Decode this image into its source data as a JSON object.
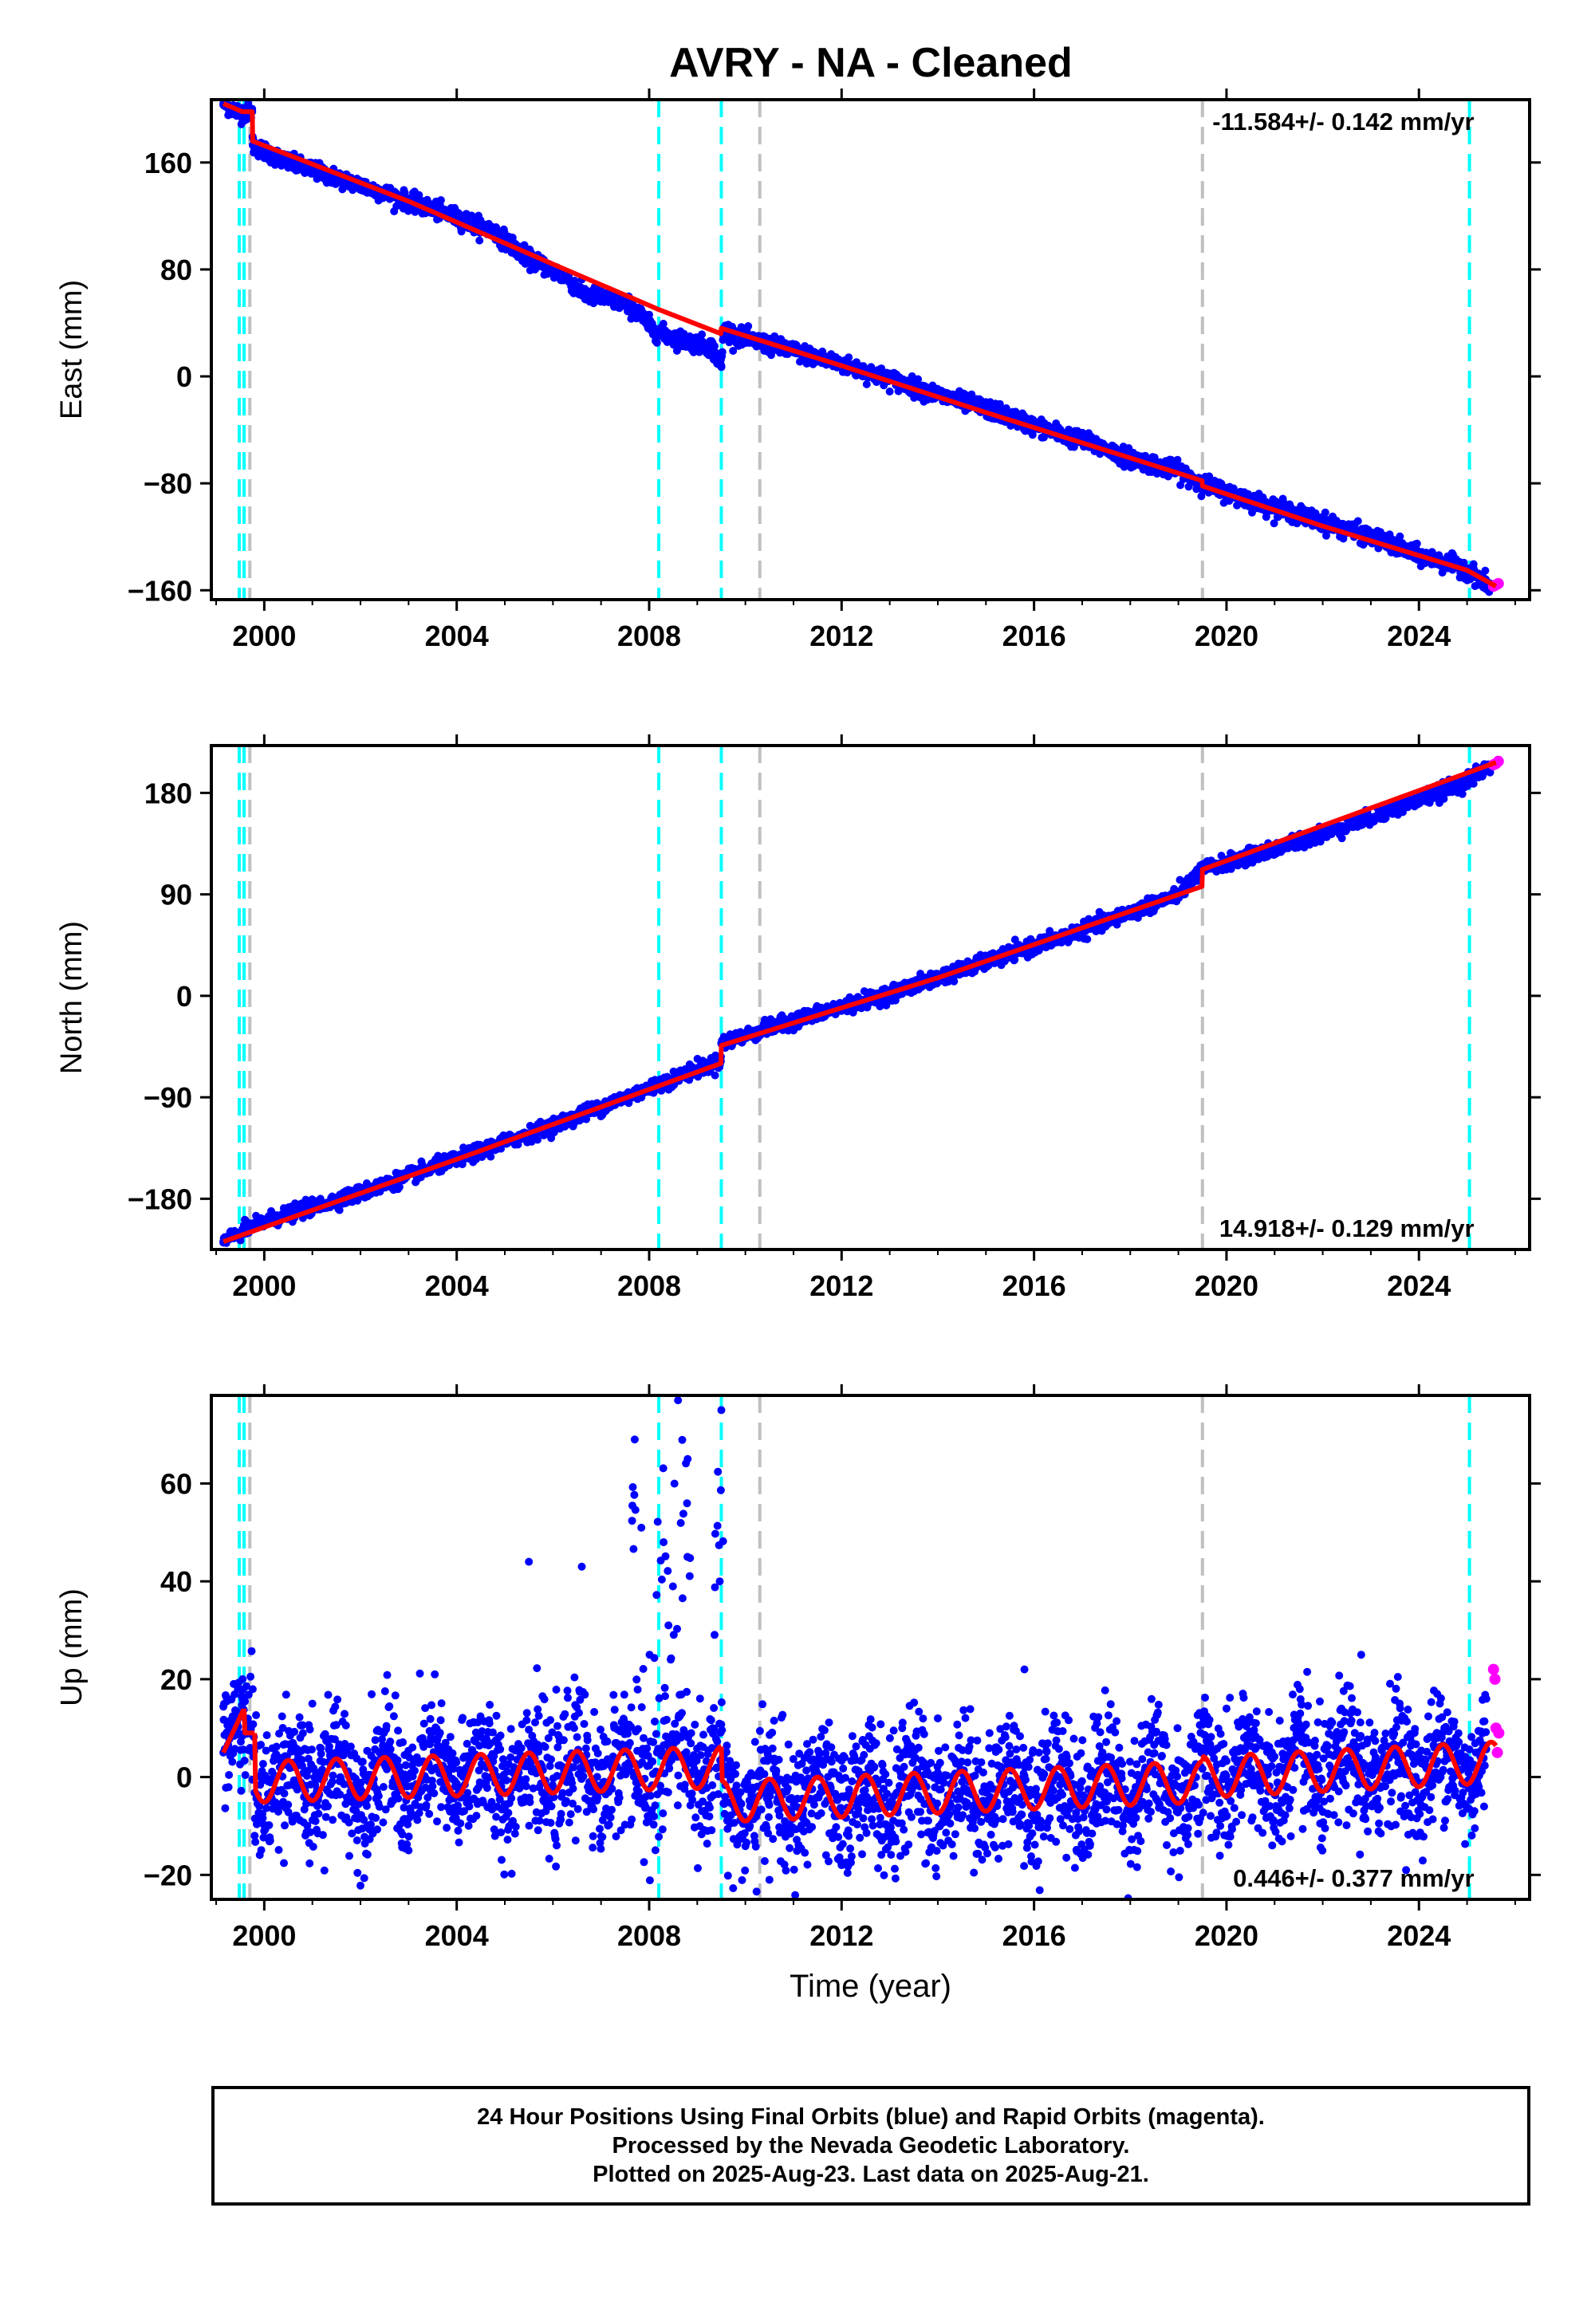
{
  "title": "AVRY  - NA - Cleaned",
  "colors": {
    "final": "#0000ff",
    "rapid": "#ff00ff",
    "model": "#ff0000",
    "equipment_change": "#00ffff",
    "earthquake": "#c0c0c0"
  },
  "chart_data": [
    {
      "type": "scatter",
      "ylabel": "East (mm)",
      "xlabel": "",
      "rate": "-11.584+/- 0.142 mm/yr",
      "rate_position": "top-right",
      "xlim": [
        1998.9,
        2026.3
      ],
      "ylim": [
        -167,
        207
      ],
      "xticks": [
        2000,
        2004,
        2008,
        2012,
        2016,
        2020,
        2024
      ],
      "xtick_labels": [
        "2000",
        "2004",
        "2008",
        "2012",
        "2016",
        "2020",
        "2024"
      ],
      "yticks": [
        -160,
        -80,
        0,
        80,
        160
      ],
      "ytick_labels": [
        "−160",
        "−80",
        "0",
        "80",
        "160"
      ],
      "series": [
        {
          "name": "Final Orbits",
          "color": "#0000ff",
          "x": [
            1999.15,
            1999.5,
            1999.75,
            1999.76,
            2000.5,
            2002,
            2004,
            2004.8,
            2005.5,
            2006.3,
            2006.6,
            2007.5,
            2007.8,
            2008.1,
            2008.6,
            2009.3,
            2009.5,
            2009.55,
            2010,
            2011,
            2012,
            2013,
            2014,
            2015,
            2016,
            2017,
            2018,
            2019,
            2019.5,
            2020,
            2021,
            2022,
            2023,
            2024,
            2025,
            2025.5
          ],
          "y": [
            204,
            197,
            198,
            173,
            160,
            143,
            119,
            108,
            88,
            74,
            62,
            55,
            47,
            34,
            28,
            22,
            8,
            35,
            28,
            19,
            9,
            -2,
            -14,
            -24,
            -37,
            -48,
            -61,
            -71,
            -80,
            -87,
            -98,
            -109,
            -120,
            -134,
            -144,
            -158
          ]
        },
        {
          "name": "Rapid Orbits",
          "color": "#ff00ff",
          "x": [
            2025.55,
            2025.6,
            2025.65
          ],
          "y": [
            -157,
            -156,
            -155
          ]
        }
      ],
      "model": {
        "color": "#ff0000",
        "x": [
          1999.15,
          1999.55,
          1999.75,
          1999.76,
          2003,
          2006,
          2008.2,
          2009.49,
          2009.5,
          2012,
          2015,
          2018,
          2019.49,
          2019.5,
          2022,
          2025,
          2025.6
        ],
        "y": [
          204,
          198,
          198,
          176,
          131,
          84,
          50,
          32,
          36,
          8,
          -27,
          -61,
          -78,
          -82,
          -112,
          -145,
          -157
        ]
      },
      "equipment_changes": [
        1999.48,
        1999.58,
        2008.2,
        2009.5,
        2025.05
      ],
      "earthquakes": [
        1999.7,
        2010.3,
        2019.5
      ]
    },
    {
      "type": "scatter",
      "ylabel": "North (mm)",
      "xlabel": "",
      "rate": "14.918+/- 0.129 mm/yr",
      "rate_position": "bottom-right",
      "xlim": [
        1998.9,
        2026.3
      ],
      "ylim": [
        -225,
        222
      ],
      "xticks": [
        2000,
        2004,
        2008,
        2012,
        2016,
        2020,
        2024
      ],
      "xtick_labels": [
        "2000",
        "2004",
        "2008",
        "2012",
        "2016",
        "2020",
        "2024"
      ],
      "yticks": [
        -180,
        -90,
        0,
        90,
        180
      ],
      "ytick_labels": [
        "−180",
        "−90",
        "0",
        "90",
        "180"
      ],
      "series": [
        {
          "name": "Final Orbits",
          "color": "#0000ff",
          "x": [
            1999.15,
            1999.6,
            2000,
            2002,
            2004,
            2006,
            2008,
            2009,
            2009.49,
            2009.5,
            2011,
            2013,
            2015,
            2017,
            2019,
            2019.5,
            2021,
            2023,
            2025,
            2025.5
          ],
          "y": [
            -218,
            -208,
            -200,
            -175,
            -145,
            -115,
            -82,
            -65,
            -58,
            -42,
            -22,
            2,
            30,
            58,
            90,
            112,
            130,
            158,
            190,
            205
          ]
        },
        {
          "name": "Rapid Orbits",
          "color": "#ff00ff",
          "x": [
            2025.55,
            2025.6,
            2025.65
          ],
          "y": [
            205,
            206,
            208
          ]
        }
      ],
      "model": {
        "color": "#ff0000",
        "x": [
          1999.15,
          2004,
          2009.49,
          2009.5,
          2014,
          2019.49,
          2019.5,
          2025.6
        ],
        "y": [
          -218,
          -145,
          -60,
          -44,
          16,
          97,
          112,
          207
        ]
      },
      "equipment_changes": [
        1999.48,
        1999.58,
        2008.2,
        2009.5,
        2025.05
      ],
      "earthquakes": [
        1999.7,
        2010.3,
        2019.5
      ]
    },
    {
      "type": "scatter",
      "ylabel": "Up (mm)",
      "xlabel": "Time (year)",
      "rate": "0.446+/- 0.377 mm/yr",
      "rate_position": "bottom-right",
      "xlim": [
        1998.9,
        2026.3
      ],
      "ylim": [
        -25,
        78
      ],
      "xticks": [
        2000,
        2004,
        2008,
        2012,
        2016,
        2020,
        2024
      ],
      "xtick_labels": [
        "2000",
        "2004",
        "2008",
        "2012",
        "2016",
        "2020",
        "2024"
      ],
      "yticks": [
        -20,
        0,
        20,
        40,
        60
      ],
      "ytick_labels": [
        "−20",
        "0",
        "20",
        "40",
        "60"
      ],
      "series": [
        {
          "name": "Final Orbits",
          "color": "#0000ff",
          "x": [
            1999.15,
            1999.55,
            1999.8,
            2001,
            2003,
            2005.5,
            2006.6,
            2007.7,
            2008.3,
            2008.6,
            2008.8,
            2009.5,
            2010.5,
            2012,
            2014,
            2015.8,
            2018,
            2020,
            2022.8,
            2024,
            2025.4
          ],
          "y": [
            5,
            20,
            -12,
            15,
            -15,
            44,
            43,
            69,
            48,
            77,
            65,
            75,
            -21,
            -18,
            12,
            22,
            -15,
            14,
            25,
            -12,
            16
          ]
        },
        {
          "name": "Rapid Orbits",
          "color": "#ff00ff",
          "x": [
            2025.55,
            2025.58,
            2025.6,
            2025.63,
            2025.66
          ],
          "y": [
            22,
            20,
            10,
            5,
            9
          ]
        }
      ],
      "model": {
        "color": "#ff0000",
        "amplitude": 4.2,
        "phase": 0.25,
        "segments": [
          {
            "x0": 1999.15,
            "x1": 1999.58,
            "y0": 5,
            "y1": 14
          },
          {
            "x0": 1999.58,
            "x1": 1999.8,
            "y0": 9,
            "y1": 9
          },
          {
            "x0": 1999.8,
            "x1": 2009.5,
            "y0": -1,
            "y1": 2
          },
          {
            "x0": 2009.5,
            "x1": 2019.5,
            "y0": -5,
            "y1": -1
          },
          {
            "x0": 2019.5,
            "x1": 2025.6,
            "y0": 0,
            "y1": 3
          }
        ]
      },
      "equipment_changes": [
        1999.48,
        1999.58,
        2008.2,
        2009.5,
        2025.05
      ],
      "earthquakes": [
        1999.7,
        2010.3,
        2019.5
      ]
    }
  ],
  "footer": {
    "line1": "24 Hour Positions Using Final Orbits (blue) and Rapid Orbits (magenta).",
    "line2": "Processed by the Nevada Geodetic Laboratory.",
    "line3": "Plotted on 2025-Aug-23. Last data on 2025-Aug-21."
  }
}
